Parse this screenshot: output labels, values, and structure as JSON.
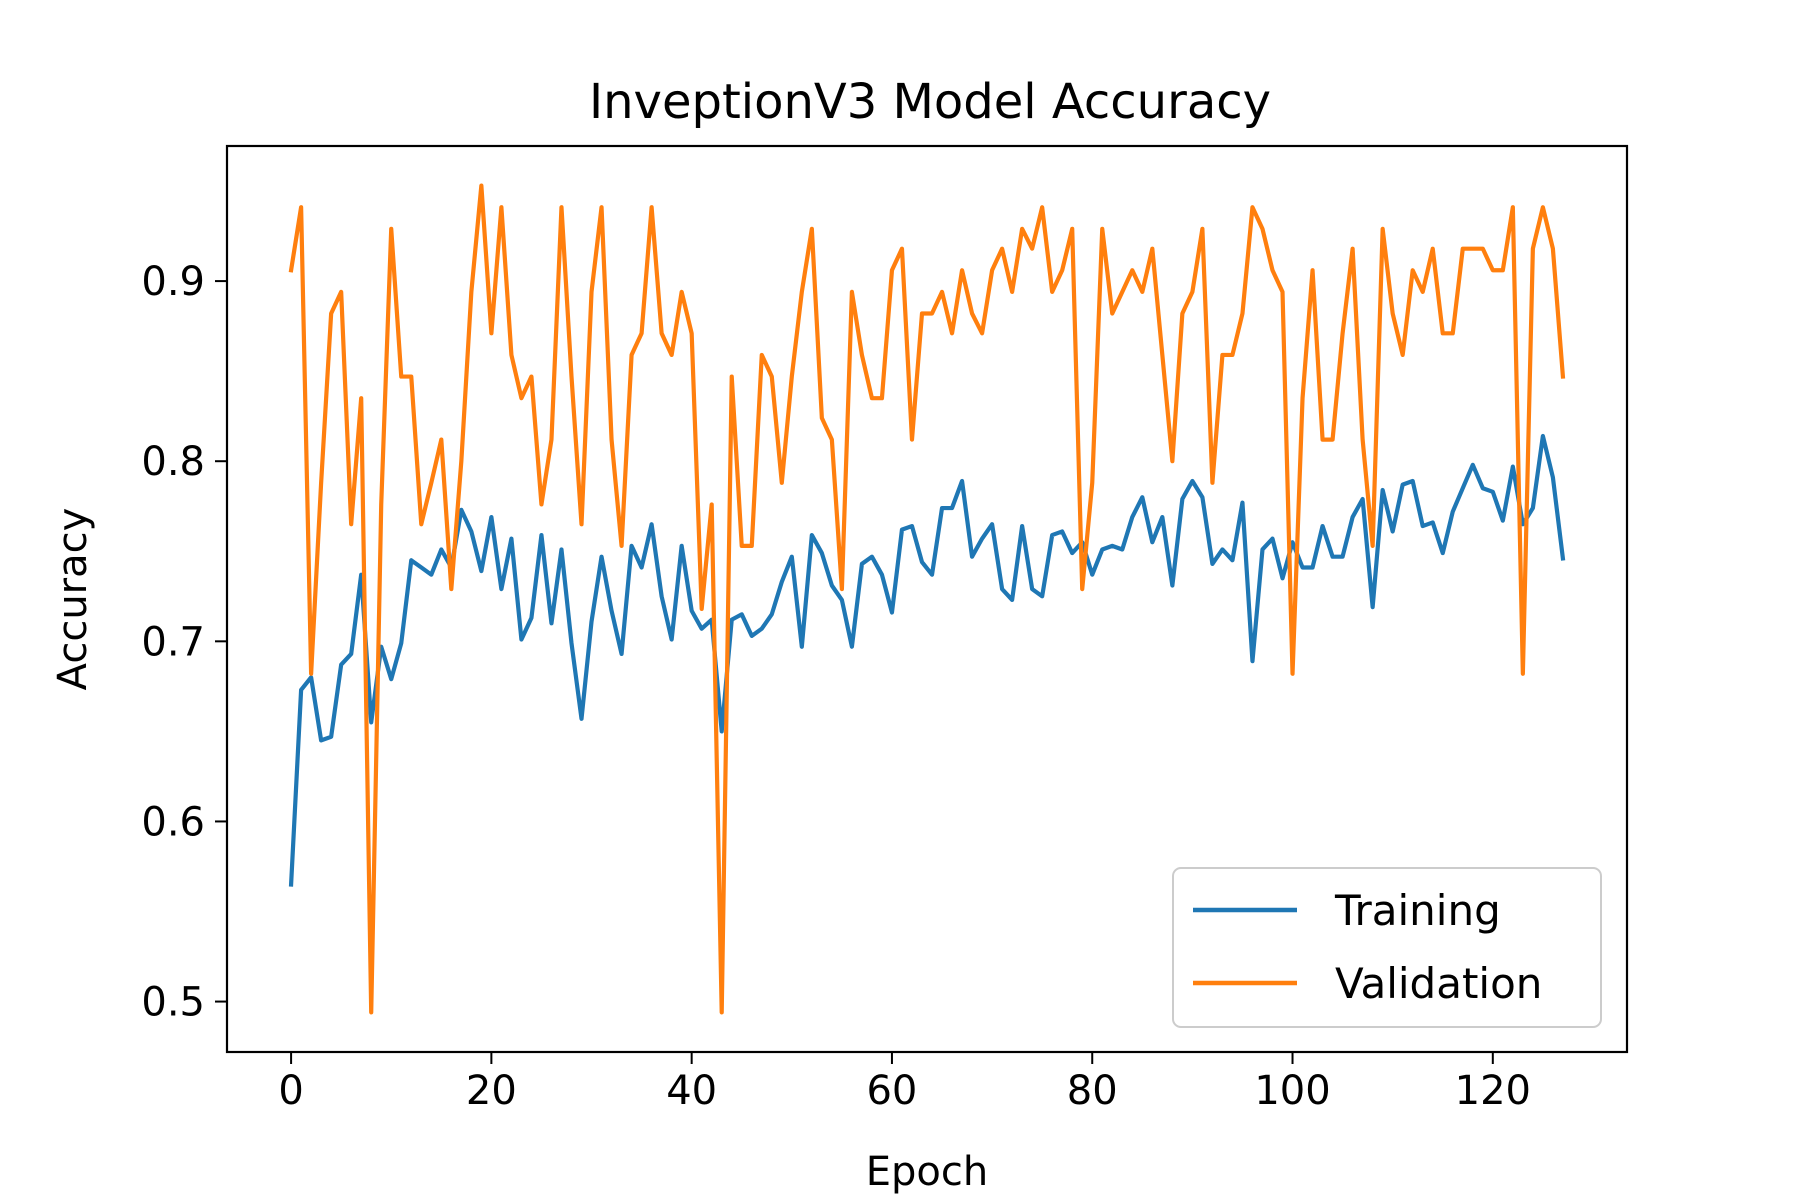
{
  "chart_data": {
    "type": "line",
    "title": "InveptionV3 Model Accuracy",
    "xlabel": "Epoch",
    "ylabel": "Accuracy",
    "xlim": [
      -6.4,
      133.4
    ],
    "ylim": [
      0.472,
      0.975
    ],
    "xticks": [
      0,
      20,
      40,
      60,
      80,
      100,
      120
    ],
    "yticks": [
      0.5,
      0.6,
      0.7,
      0.8,
      0.9
    ],
    "x_tick_labels": [
      "0",
      "20",
      "40",
      "60",
      "80",
      "100",
      "120"
    ],
    "y_tick_labels": [
      "0.5",
      "0.6",
      "0.7",
      "0.8",
      "0.9"
    ],
    "grid": false,
    "legend": {
      "position": "lower-right"
    },
    "series": [
      {
        "name": "Training",
        "color": "#1f77b4",
        "values": [
          0.565,
          0.673,
          0.68,
          0.645,
          0.647,
          0.687,
          0.693,
          0.737,
          0.655,
          0.697,
          0.679,
          0.699,
          0.745,
          0.741,
          0.737,
          0.751,
          0.741,
          0.773,
          0.761,
          0.739,
          0.769,
          0.729,
          0.757,
          0.701,
          0.713,
          0.759,
          0.71,
          0.751,
          0.699,
          0.657,
          0.711,
          0.747,
          0.717,
          0.693,
          0.753,
          0.741,
          0.765,
          0.725,
          0.701,
          0.753,
          0.717,
          0.707,
          0.712,
          0.65,
          0.712,
          0.715,
          0.703,
          0.707,
          0.715,
          0.733,
          0.747,
          0.697,
          0.759,
          0.749,
          0.731,
          0.723,
          0.697,
          0.743,
          0.747,
          0.737,
          0.716,
          0.762,
          0.764,
          0.744,
          0.737,
          0.774,
          0.774,
          0.789,
          0.747,
          0.757,
          0.765,
          0.729,
          0.723,
          0.764,
          0.729,
          0.725,
          0.759,
          0.761,
          0.749,
          0.755,
          0.737,
          0.751,
          0.753,
          0.751,
          0.769,
          0.78,
          0.755,
          0.769,
          0.731,
          0.779,
          0.789,
          0.78,
          0.743,
          0.751,
          0.745,
          0.777,
          0.689,
          0.751,
          0.757,
          0.735,
          0.755,
          0.741,
          0.741,
          0.764,
          0.747,
          0.747,
          0.769,
          0.779,
          0.719,
          0.784,
          0.761,
          0.787,
          0.789,
          0.764,
          0.766,
          0.749,
          0.772,
          0.785,
          0.798,
          0.785,
          0.783,
          0.767,
          0.797,
          0.765,
          0.774,
          0.814,
          0.791,
          0.746
        ]
      },
      {
        "name": "Validation",
        "color": "#ff7f0e",
        "values": [
          0.906,
          0.941,
          0.682,
          0.788,
          0.882,
          0.894,
          0.765,
          0.835,
          0.494,
          0.776,
          0.929,
          0.847,
          0.847,
          0.765,
          0.788,
          0.812,
          0.729,
          0.8,
          0.894,
          0.953,
          0.871,
          0.941,
          0.859,
          0.835,
          0.847,
          0.776,
          0.812,
          0.941,
          0.847,
          0.765,
          0.894,
          0.941,
          0.812,
          0.753,
          0.859,
          0.871,
          0.941,
          0.871,
          0.859,
          0.894,
          0.871,
          0.718,
          0.776,
          0.494,
          0.847,
          0.753,
          0.753,
          0.859,
          0.847,
          0.788,
          0.847,
          0.894,
          0.929,
          0.824,
          0.812,
          0.729,
          0.894,
          0.859,
          0.835,
          0.835,
          0.906,
          0.918,
          0.812,
          0.882,
          0.882,
          0.894,
          0.871,
          0.906,
          0.882,
          0.871,
          0.906,
          0.918,
          0.894,
          0.929,
          0.918,
          0.941,
          0.894,
          0.906,
          0.929,
          0.729,
          0.788,
          0.929,
          0.882,
          0.894,
          0.906,
          0.894,
          0.918,
          0.859,
          0.8,
          0.882,
          0.894,
          0.929,
          0.788,
          0.859,
          0.859,
          0.882,
          0.941,
          0.929,
          0.906,
          0.894,
          0.682,
          0.835,
          0.906,
          0.812,
          0.812,
          0.871,
          0.918,
          0.812,
          0.753,
          0.929,
          0.882,
          0.859,
          0.906,
          0.894,
          0.918,
          0.871,
          0.871,
          0.918,
          0.918,
          0.918,
          0.906,
          0.906,
          0.941,
          0.682,
          0.918,
          0.941,
          0.918,
          0.847
        ]
      }
    ]
  }
}
